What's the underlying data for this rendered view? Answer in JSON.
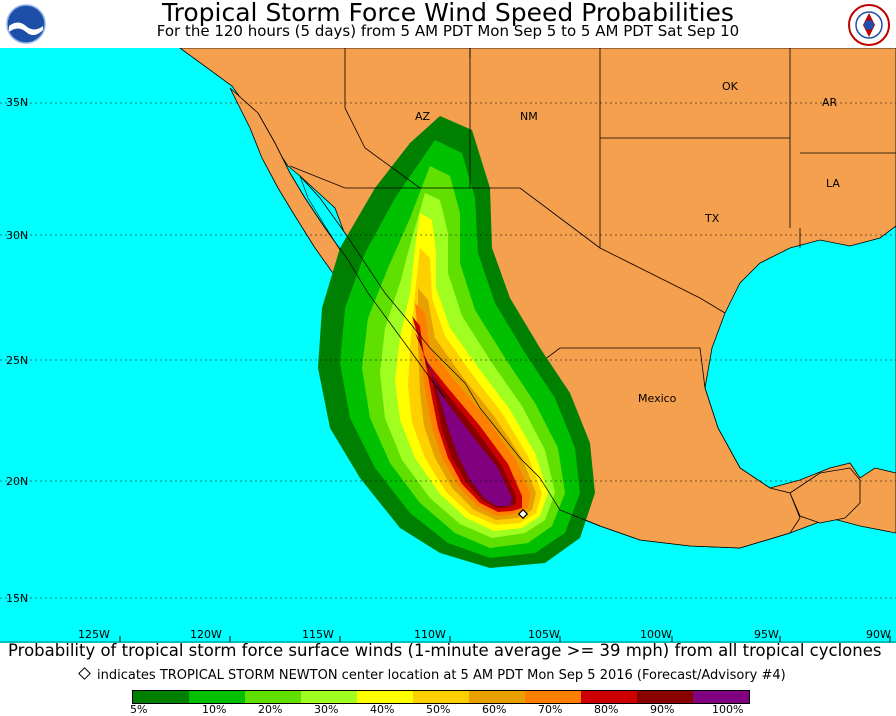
{
  "header": {
    "title": "Tropical Storm Force Wind Speed Probabilities",
    "subtitle": "For the 120 hours (5 days) from 5 AM PDT Mon Sep 5 to 5 AM PDT Sat Sep 10"
  },
  "logos": {
    "left": "noaa-logo",
    "right": "nws-logo"
  },
  "map": {
    "ocean_color": "#00ffff",
    "land_color": "#f5a04f",
    "labels": {
      "az": "AZ",
      "nm": "NM",
      "ok": "OK",
      "ar": "AR",
      "la": "LA",
      "tx": "TX",
      "mexico": "Mexico"
    },
    "lat_labels": [
      "35N",
      "30N",
      "25N",
      "20N",
      "15N"
    ],
    "lon_labels": [
      "125W",
      "120W",
      "115W",
      "110W",
      "105W",
      "100W",
      "95W",
      "90W"
    ]
  },
  "footer": {
    "description": "Probability of tropical storm force surface winds (1-minute average >= 39 mph) from all tropical cyclones",
    "center_note": "indicates TROPICAL STORM NEWTON center location at 5 AM PDT Mon Sep 5 2016 (Forecast/Advisory #4)"
  },
  "legend": {
    "colors": [
      "#008000",
      "#00c000",
      "#60e000",
      "#a0ff20",
      "#ffff00",
      "#ffd000",
      "#e8a000",
      "#ff8000",
      "#cc0000",
      "#880000",
      "#800080"
    ],
    "labels": [
      "5%",
      "10%",
      "20%",
      "30%",
      "40%",
      "50%",
      "60%",
      "70%",
      "80%",
      "90%",
      "100%"
    ]
  }
}
